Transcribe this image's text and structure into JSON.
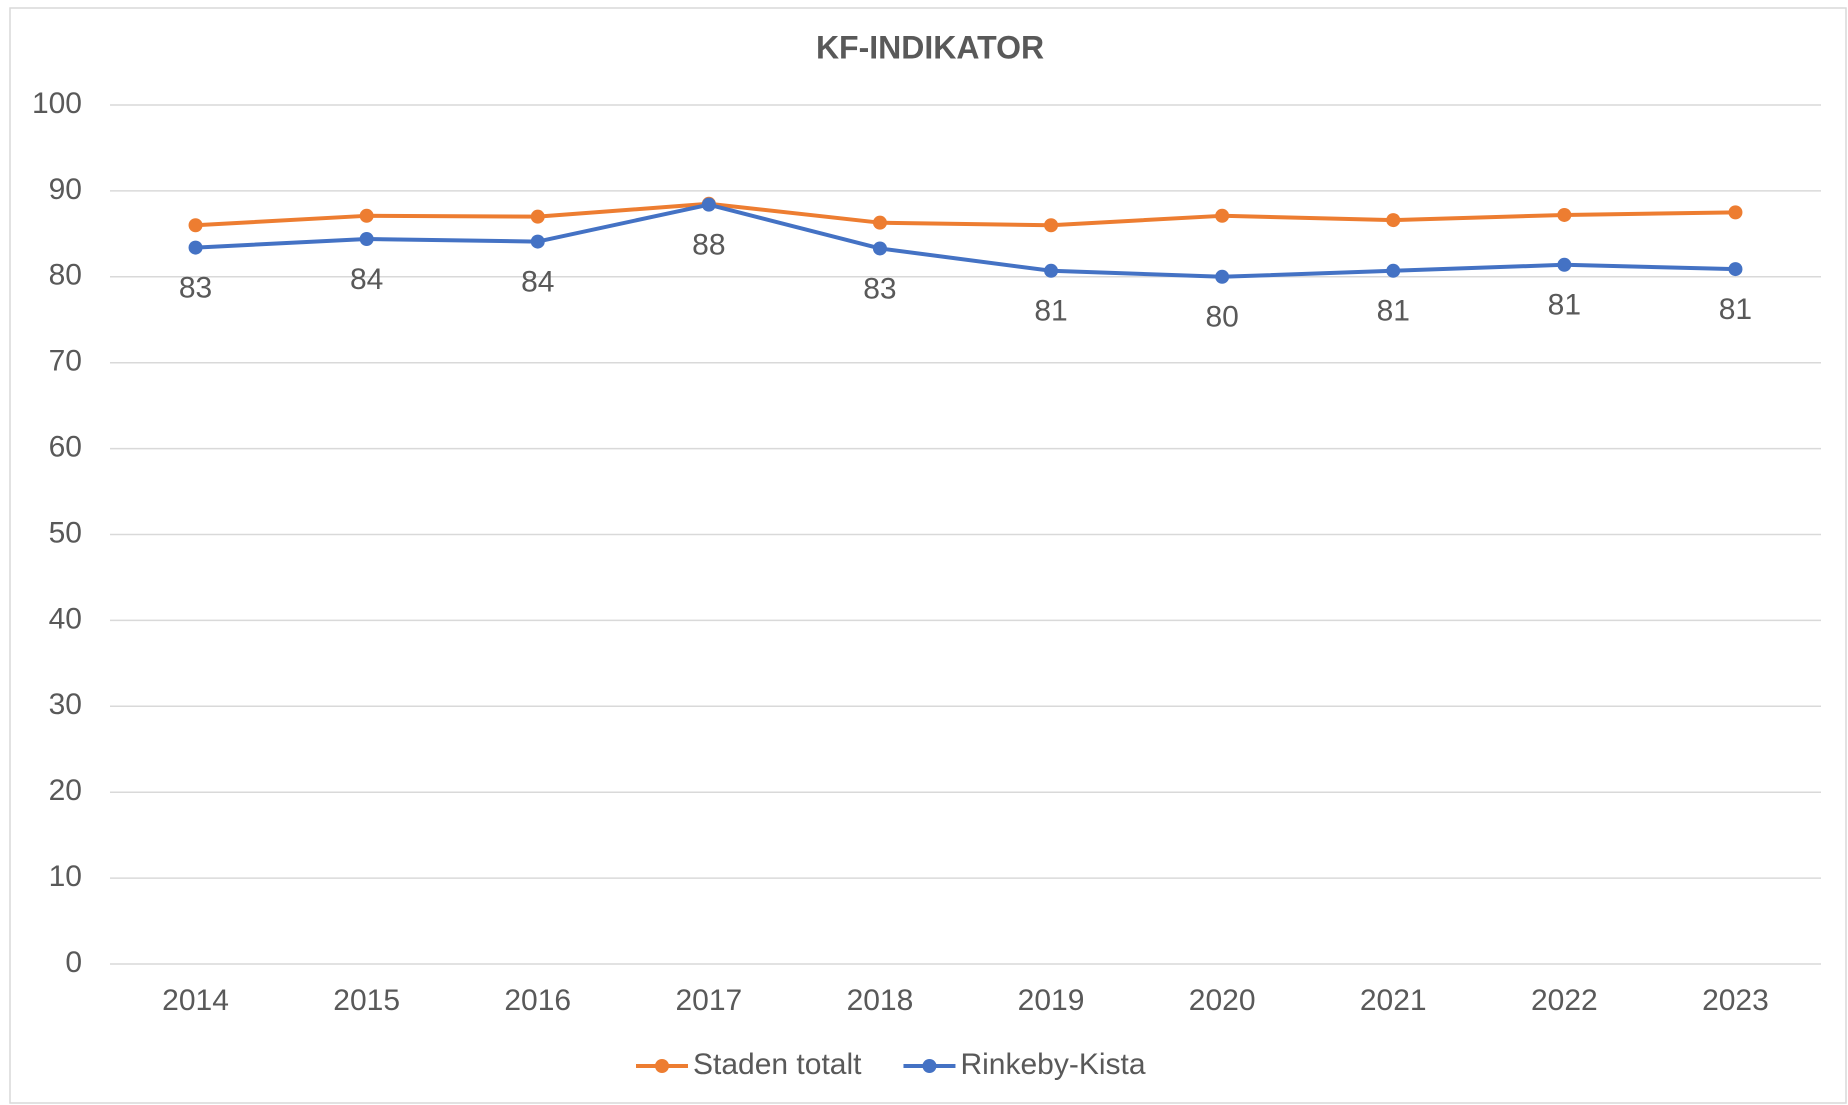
{
  "chart_data": {
    "type": "line",
    "title": "KF-INDIKATOR",
    "categories": [
      "2014",
      "2015",
      "2016",
      "2017",
      "2018",
      "2019",
      "2020",
      "2021",
      "2022",
      "2023"
    ],
    "series": [
      {
        "name": "Staden totalt",
        "color": "#ed7d31",
        "values": [
          86.0,
          87.1,
          87.0,
          88.5,
          86.3,
          86.0,
          87.1,
          86.6,
          87.2,
          87.5
        ]
      },
      {
        "name": "Rinkeby-Kista",
        "color": "#4472c4",
        "values": [
          83.4,
          84.4,
          84.1,
          88.4,
          83.3,
          80.7,
          80.0,
          80.7,
          81.4,
          80.9
        ],
        "value_labels": [
          "83",
          "84",
          "84",
          "88",
          "83",
          "81",
          "80",
          "81",
          "81",
          "81"
        ]
      }
    ],
    "ylim": [
      0,
      100
    ],
    "yticks": [
      0,
      10,
      20,
      30,
      40,
      50,
      60,
      70,
      80,
      90,
      100
    ],
    "grid": true,
    "legend": "bottom"
  }
}
